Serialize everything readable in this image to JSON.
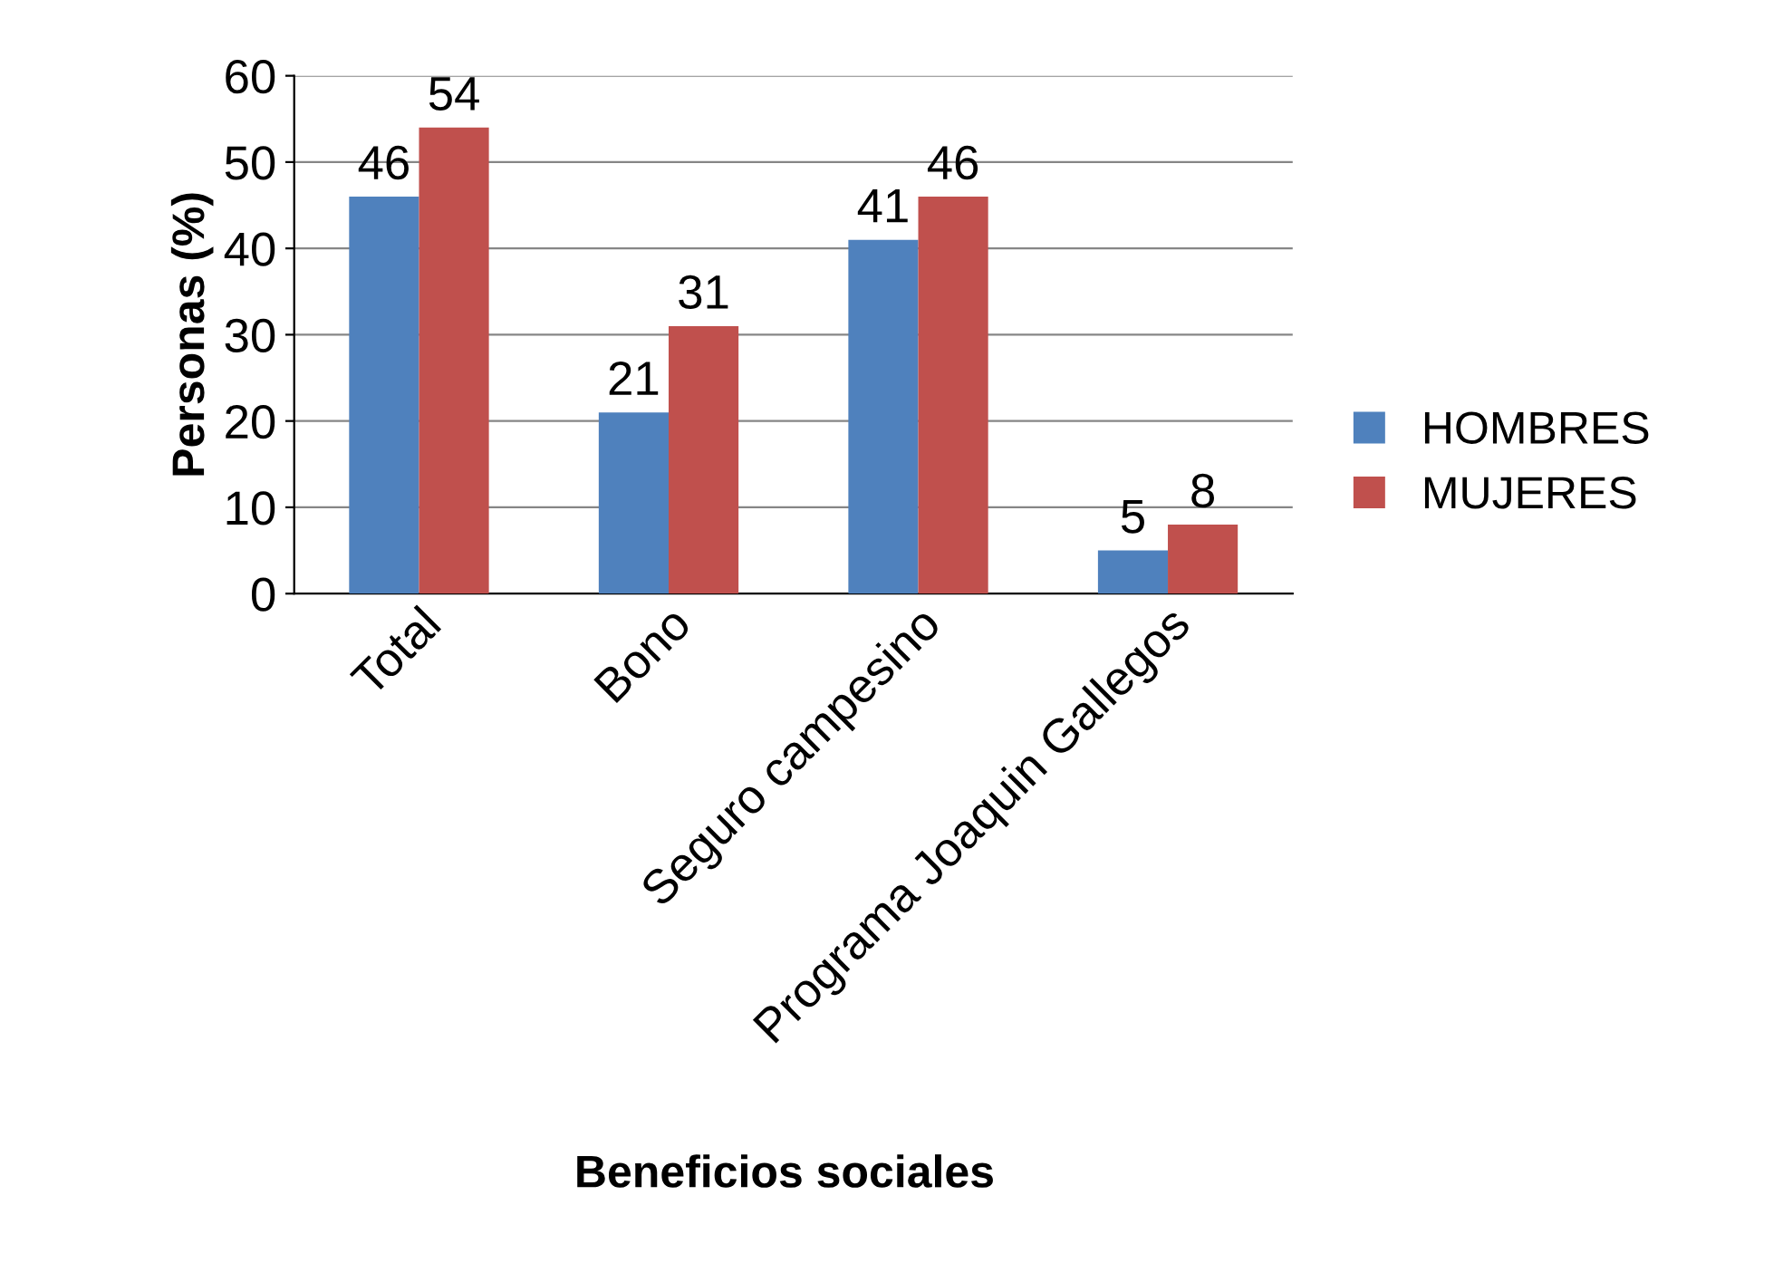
{
  "chart_data": {
    "type": "bar",
    "xlabel": "Beneficios sociales",
    "ylabel": "Personas (%)",
    "categories": [
      "Total",
      "Bono",
      "Seguro campesino",
      "Programa Joaquin Gallegos"
    ],
    "series": [
      {
        "name": "HOMBRES",
        "color": "#4f81bd",
        "values": [
          46,
          21,
          41,
          5
        ]
      },
      {
        "name": "MUJERES",
        "color": "#c0504d",
        "values": [
          54,
          31,
          46,
          8
        ]
      }
    ],
    "ylim": [
      0,
      60
    ],
    "yticks": [
      0,
      10,
      20,
      30,
      40,
      50,
      60
    ],
    "grid": "y",
    "legend": "right",
    "data_labels": true
  }
}
